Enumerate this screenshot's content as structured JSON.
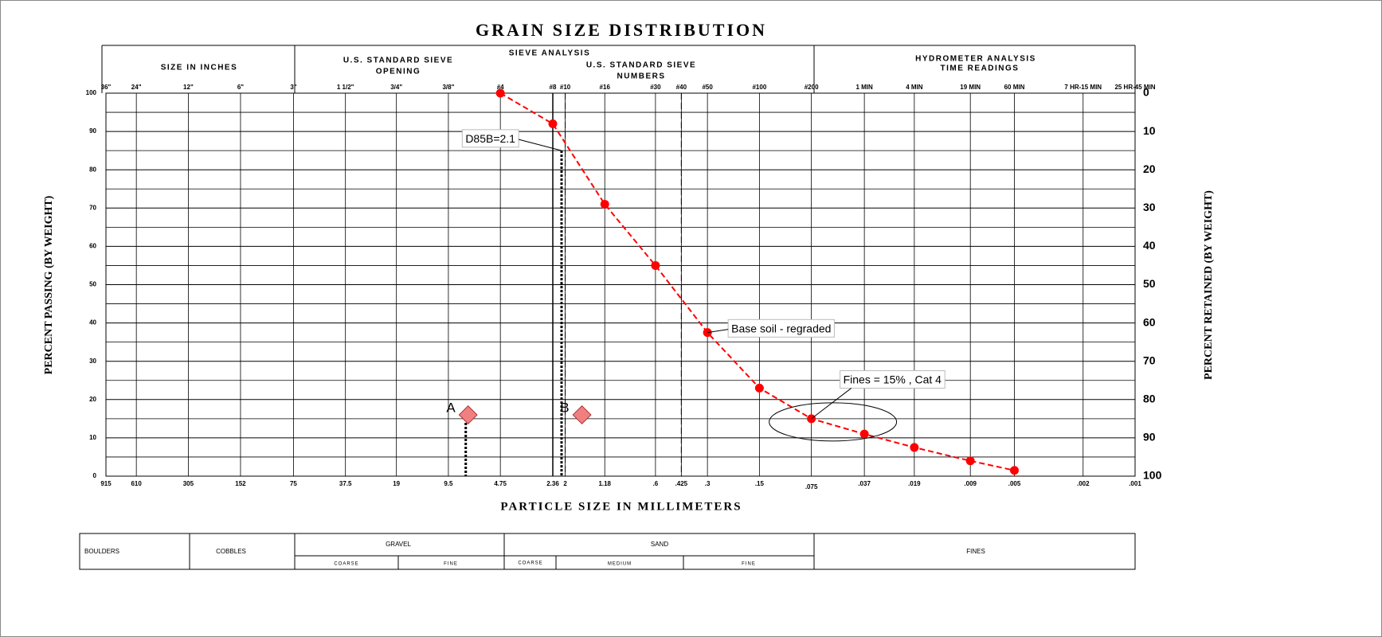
{
  "chart_data": {
    "type": "line",
    "title": "GRAIN SIZE DISTRIBUTION",
    "xlabel": "PARTICLE SIZE IN MILLIMETERS",
    "ylabel": "PERCENT PASSING (BY WEIGHT)",
    "y2label": "PERCENT RETAINED (BY WEIGHT)",
    "xscale": "log",
    "xlim": [
      915,
      0.001
    ],
    "ylim": [
      0,
      100
    ],
    "y2lim": [
      100,
      0
    ],
    "grid": true,
    "xticks": [
      915,
      610,
      305,
      152,
      75,
      {
        "value": 37.5,
        "label": "37.5"
      },
      19,
      {
        "value": 9.5,
        "label": "9.5"
      },
      {
        "value": 4.75,
        "label": "4.75"
      },
      {
        "value": 2.36,
        "label": "2.36"
      },
      2,
      {
        "value": 1.18,
        "label": "1.18"
      },
      {
        "value": 0.6,
        "label": ".6"
      },
      {
        "value": 0.425,
        "label": ".425"
      },
      {
        "value": 0.3,
        "label": ".3"
      },
      {
        "value": 0.15,
        "label": ".15"
      },
      {
        "value": 0.075,
        "label": ".075"
      },
      {
        "value": 0.037,
        "label": ".037"
      },
      {
        "value": 0.019,
        "label": ".019"
      },
      {
        "value": 0.009,
        "label": ".009"
      },
      {
        "value": 0.005,
        "label": ".005"
      },
      {
        "value": 0.002,
        "label": ".002"
      },
      {
        "value": 0.001,
        "label": ".001"
      }
    ],
    "x2ticks": [
      {
        "value": 915,
        "label": "36\""
      },
      {
        "value": 610,
        "label": "24\""
      },
      {
        "value": 305,
        "label": "12\""
      },
      {
        "value": 152,
        "label": "6\""
      },
      {
        "value": 75,
        "label": "3\""
      },
      {
        "value": 37.5,
        "label": "1 1/2\""
      },
      {
        "value": 19,
        "label": "3/4\""
      },
      {
        "value": 9.5,
        "label": "3/8\""
      },
      {
        "value": 4.75,
        "label": "#4"
      },
      {
        "value": 2.36,
        "label": "#8"
      },
      {
        "value": 2,
        "label": "#10"
      },
      {
        "value": 1.18,
        "label": "#16"
      },
      {
        "value": 0.6,
        "label": "#30"
      },
      {
        "value": 0.425,
        "label": "#40"
      },
      {
        "value": 0.3,
        "label": "#50"
      },
      {
        "value": 0.15,
        "label": "#100"
      },
      {
        "value": 0.075,
        "label": "#200"
      },
      {
        "value": 0.037,
        "label": "1 MIN"
      },
      {
        "value": 0.019,
        "label": "4 MIN"
      },
      {
        "value": 0.009,
        "label": "19 MIN"
      },
      {
        "value": 0.005,
        "label": "60 MIN"
      },
      {
        "value": 0.002,
        "label": "7 HR-15 MIN"
      },
      {
        "value": 0.001,
        "label": "25 HR-45 MIN"
      }
    ],
    "yticks": [
      0,
      10,
      20,
      30,
      40,
      50,
      60,
      70,
      80,
      90,
      100
    ],
    "yminorticks": [
      5,
      15,
      25,
      35,
      45,
      55,
      65,
      75,
      85,
      95
    ],
    "y2ticks": [
      0,
      10,
      20,
      30,
      40,
      50,
      60,
      70,
      80,
      90,
      100
    ],
    "reference_lines": [
      {
        "x": 2.36,
        "style": "solid"
      },
      {
        "x": 2,
        "style": "dashed"
      },
      {
        "x": 0.425,
        "style": "dashed"
      }
    ],
    "series": [
      {
        "color": "#ff0000",
        "line_style": "dashed",
        "x": [
          4.75,
          2.36,
          1.18,
          0.6,
          0.3,
          0.15,
          0.075,
          0.037,
          0.019,
          0.009,
          0.005
        ],
        "values": [
          100,
          92,
          71,
          55,
          37.5,
          23,
          15,
          11,
          7.5,
          4,
          1.5
        ]
      }
    ],
    "markers": {
      "names": [
        "A",
        "B"
      ],
      "x": [
        7.3,
        1.6
      ],
      "y": [
        16,
        16
      ],
      "color": "#f08080",
      "drop_line": [
        true,
        false
      ]
    },
    "annotations": [
      {
        "text": "D85B=2.1",
        "x": 2.1,
        "y": 85,
        "drop_line": true
      },
      {
        "text": "Base soil - regraded",
        "x": 0.3,
        "y": 37.5
      },
      {
        "text": "Fines = 15% , Cat 4",
        "x": 0.075,
        "y": 15,
        "circled": true
      }
    ],
    "header": {
      "size_inches": "SIZE IN INCHES",
      "sieve_opening_1": "U.S. STANDARD SIEVE",
      "sieve_opening_2": "OPENING",
      "sieve_analysis": "SIEVE ANALYSIS",
      "sieve_numbers_1": "U.S. STANDARD SIEVE",
      "sieve_numbers_2": "NUMBERS",
      "hydrometer": "HYDROMETER ANALYSIS",
      "time_readings": "TIME READINGS"
    }
  },
  "classification": {
    "boulders": "BOULDERS",
    "cobbles": "COBBLES",
    "gravel": "GRAVEL",
    "gravel_coarse": "COARSE",
    "gravel_fine": "FINE",
    "sand": "SAND",
    "sand_coarse": "COARSE",
    "sand_medium": "MEDIUM",
    "sand_fine": "FINE",
    "fines": "FINES"
  }
}
